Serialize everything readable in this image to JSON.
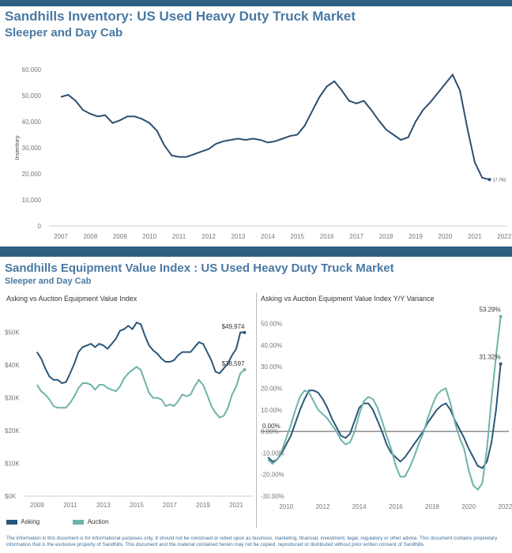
{
  "colors": {
    "band": "#2e5f80",
    "title": "#4a79a3",
    "inventory": "#2c4f70",
    "asking": "#2c5779",
    "auction": "#6fb3ab"
  },
  "section1": {
    "title": "Sandhills Inventory:  US Used Heavy Duty Truck Market",
    "subtitle": "Sleeper and Day Cab"
  },
  "section2": {
    "title": "Sandhills Equipment Value Index : US Used Heavy Duty Truck Market",
    "subtitle": "Sleeper and Day Cab"
  },
  "legend": {
    "asking": "Asking",
    "auction": "Auction"
  },
  "footer": "The information in this document is for informational purposes only.  It should not be construed or relied upon as business, marketing, financial, investment, legal, regulatory or other advice. This document contains proprietary information that is the exclusive property of Sandhills. This document and the material contained herein may not be copied, reproduced or distributed without prior written consent of Sandhills.",
  "chart_data": [
    {
      "type": "line",
      "ylabel": "Inventory",
      "ylim": [
        0,
        60000
      ],
      "xlim": [
        2006.6,
        2022.1
      ],
      "yticks": [
        0,
        10000,
        20000,
        30000,
        40000,
        50000,
        60000
      ],
      "ytick_labels": [
        "0",
        "10,000",
        "20,000",
        "30,000",
        "40,000",
        "50,000",
        "60,000"
      ],
      "xticks": [
        2007,
        2008,
        2009,
        2010,
        2011,
        2012,
        2013,
        2014,
        2015,
        2016,
        2017,
        2018,
        2019,
        2020,
        2021,
        2022
      ],
      "xtick_labels": [
        "2007",
        "2008",
        "2009",
        "2010",
        "2011",
        "2012",
        "2013",
        "2014",
        "2015",
        "2016",
        "2017",
        "2018",
        "2019",
        "2020",
        "2021",
        "2022"
      ],
      "grid": false,
      "end_label": "17,793",
      "x": [
        2007.0,
        2007.25,
        2007.5,
        2007.75,
        2008.0,
        2008.25,
        2008.5,
        2008.75,
        2009.0,
        2009.25,
        2009.5,
        2009.75,
        2010.0,
        2010.25,
        2010.5,
        2010.75,
        2011.0,
        2011.25,
        2011.5,
        2011.75,
        2012.0,
        2012.25,
        2012.5,
        2012.75,
        2013.0,
        2013.25,
        2013.5,
        2013.75,
        2014.0,
        2014.25,
        2014.5,
        2014.75,
        2015.0,
        2015.25,
        2015.5,
        2015.75,
        2016.0,
        2016.25,
        2016.5,
        2016.75,
        2017.0,
        2017.25,
        2017.5,
        2017.75,
        2018.0,
        2018.25,
        2018.5,
        2018.75,
        2019.0,
        2019.25,
        2019.5,
        2019.75,
        2020.0,
        2020.25,
        2020.5,
        2020.75,
        2021.0,
        2021.25,
        2021.5
      ],
      "y": [
        49500,
        50300,
        48000,
        44500,
        43000,
        42000,
        42500,
        39500,
        40500,
        42000,
        42000,
        41000,
        39500,
        36500,
        31000,
        27000,
        26500,
        26500,
        27500,
        28500,
        29500,
        31500,
        32500,
        33000,
        33500,
        33000,
        33500,
        33000,
        32000,
        32500,
        33500,
        34500,
        35000,
        38500,
        44000,
        49500,
        53500,
        55500,
        52000,
        48000,
        47000,
        48000,
        44500,
        40500,
        37000,
        35000,
        33000,
        34000,
        40000,
        44500,
        47500,
        51000,
        54500,
        58000,
        52000,
        37500,
        24500,
        18500,
        17793
      ]
    },
    {
      "type": "line",
      "title": "Asking vs Auction Equipment Value Index",
      "ylim": [
        0,
        55000
      ],
      "xlim": [
        2008.2,
        2022.0
      ],
      "yticks": [
        0,
        10000,
        20000,
        30000,
        40000,
        50000
      ],
      "ytick_labels": [
        "$0K",
        "$10K",
        "$20K",
        "$30K",
        "$40K",
        "$50K"
      ],
      "xticks": [
        2009,
        2011,
        2013,
        2015,
        2017,
        2019,
        2021
      ],
      "xtick_labels": [
        "2009",
        "2011",
        "2013",
        "2015",
        "2017",
        "2019",
        "2021"
      ],
      "grid": false,
      "x": [
        2009.0,
        2009.25,
        2009.5,
        2009.75,
        2010.0,
        2010.25,
        2010.5,
        2010.75,
        2011.0,
        2011.25,
        2011.5,
        2011.75,
        2012.0,
        2012.25,
        2012.5,
        2012.75,
        2013.0,
        2013.25,
        2013.5,
        2013.75,
        2014.0,
        2014.25,
        2014.5,
        2014.75,
        2015.0,
        2015.25,
        2015.5,
        2015.75,
        2016.0,
        2016.25,
        2016.5,
        2016.75,
        2017.0,
        2017.25,
        2017.5,
        2017.75,
        2018.0,
        2018.25,
        2018.5,
        2018.75,
        2019.0,
        2019.25,
        2019.5,
        2019.75,
        2020.0,
        2020.25,
        2020.5,
        2020.75,
        2021.0,
        2021.25,
        2021.5
      ],
      "series": [
        {
          "name": "Asking",
          "end_label": "$49,974",
          "values": [
            44000,
            42000,
            39000,
            36500,
            35500,
            35500,
            34500,
            34800,
            37500,
            40500,
            44000,
            45500,
            46000,
            46500,
            45500,
            46500,
            46000,
            45000,
            46500,
            48000,
            50500,
            51000,
            52000,
            51000,
            53000,
            52500,
            49000,
            46000,
            44500,
            43500,
            42000,
            41000,
            41000,
            41500,
            43000,
            44000,
            44000,
            44000,
            45500,
            47000,
            46500,
            44000,
            41500,
            38000,
            37500,
            39000,
            40500,
            43000,
            45000,
            50000,
            49974
          ]
        },
        {
          "name": "Auction",
          "end_label": "$38,597",
          "values": [
            34000,
            32000,
            31000,
            29500,
            27500,
            27000,
            27000,
            27000,
            28500,
            30500,
            33000,
            34500,
            34500,
            34000,
            32500,
            34000,
            34000,
            33000,
            32500,
            32000,
            33500,
            36000,
            37500,
            38500,
            39500,
            38500,
            35000,
            31500,
            30000,
            30000,
            29500,
            27500,
            28000,
            27500,
            29000,
            31000,
            30500,
            31000,
            33500,
            35500,
            34000,
            31000,
            27500,
            25500,
            24000,
            24500,
            27000,
            31000,
            33500,
            37500,
            38597
          ]
        }
      ]
    },
    {
      "type": "line",
      "title": "Asking vs Auction Equipment Value Index Y/Y Variance",
      "ylim": [
        -30,
        55
      ],
      "xlim": [
        2008.6,
        2022.2
      ],
      "yticks": [
        -30,
        -20,
        -10,
        0,
        10,
        20,
        30,
        40,
        50
      ],
      "ytick_labels": [
        "-30.00%",
        "-20.00%",
        "-10.00%",
        "0.00%",
        "10.00%",
        "20.00%",
        "30.00%",
        "40.00%",
        "50.00%"
      ],
      "xticks": [
        2010,
        2012,
        2014,
        2016,
        2018,
        2020,
        2022
      ],
      "xtick_labels": [
        "2010",
        "2012",
        "2014",
        "2016",
        "2018",
        "2020",
        "2022"
      ],
      "zero_label": "0.00%",
      "grid": false,
      "x": [
        2009.0,
        2009.25,
        2009.5,
        2009.75,
        2010.0,
        2010.25,
        2010.5,
        2010.75,
        2011.0,
        2011.25,
        2011.5,
        2011.75,
        2012.0,
        2012.25,
        2012.5,
        2012.75,
        2013.0,
        2013.25,
        2013.5,
        2013.75,
        2014.0,
        2014.25,
        2014.5,
        2014.75,
        2015.0,
        2015.25,
        2015.5,
        2015.75,
        2016.0,
        2016.25,
        2016.5,
        2016.75,
        2017.0,
        2017.25,
        2017.5,
        2017.75,
        2018.0,
        2018.25,
        2018.5,
        2018.75,
        2019.0,
        2019.25,
        2019.5,
        2019.75,
        2020.0,
        2020.25,
        2020.5,
        2020.75,
        2021.0,
        2021.25,
        2021.5,
        2021.75
      ],
      "series": [
        {
          "name": "Asking",
          "end_label": "31.32%",
          "values": [
            -12,
            -14,
            -13,
            -10,
            -6,
            -2,
            4,
            10,
            15,
            19,
            19,
            18,
            15,
            11,
            6,
            2,
            -2,
            -3,
            -1,
            5,
            11,
            13,
            13,
            10,
            5,
            0,
            -6,
            -10,
            -12,
            -14,
            -12,
            -9,
            -6,
            -3,
            0,
            4,
            7,
            10,
            12,
            13,
            10,
            5,
            1,
            -3,
            -8,
            -12,
            -16,
            -17,
            -14,
            -5,
            10,
            31.32
          ]
        },
        {
          "name": "Auction",
          "end_label": "53.29%",
          "values": [
            -13,
            -15,
            -13,
            -9,
            -3,
            3,
            10,
            16,
            19,
            18,
            14,
            10,
            8,
            6,
            3,
            0,
            -4,
            -6,
            -5,
            0,
            8,
            14,
            16,
            15,
            11,
            5,
            -2,
            -8,
            -16,
            -21,
            -21,
            -17,
            -12,
            -6,
            -1,
            6,
            12,
            17,
            19,
            20,
            13,
            4,
            -3,
            -8,
            -18,
            -25,
            -27,
            -24,
            -8,
            15,
            35,
            53.29
          ]
        }
      ]
    }
  ]
}
